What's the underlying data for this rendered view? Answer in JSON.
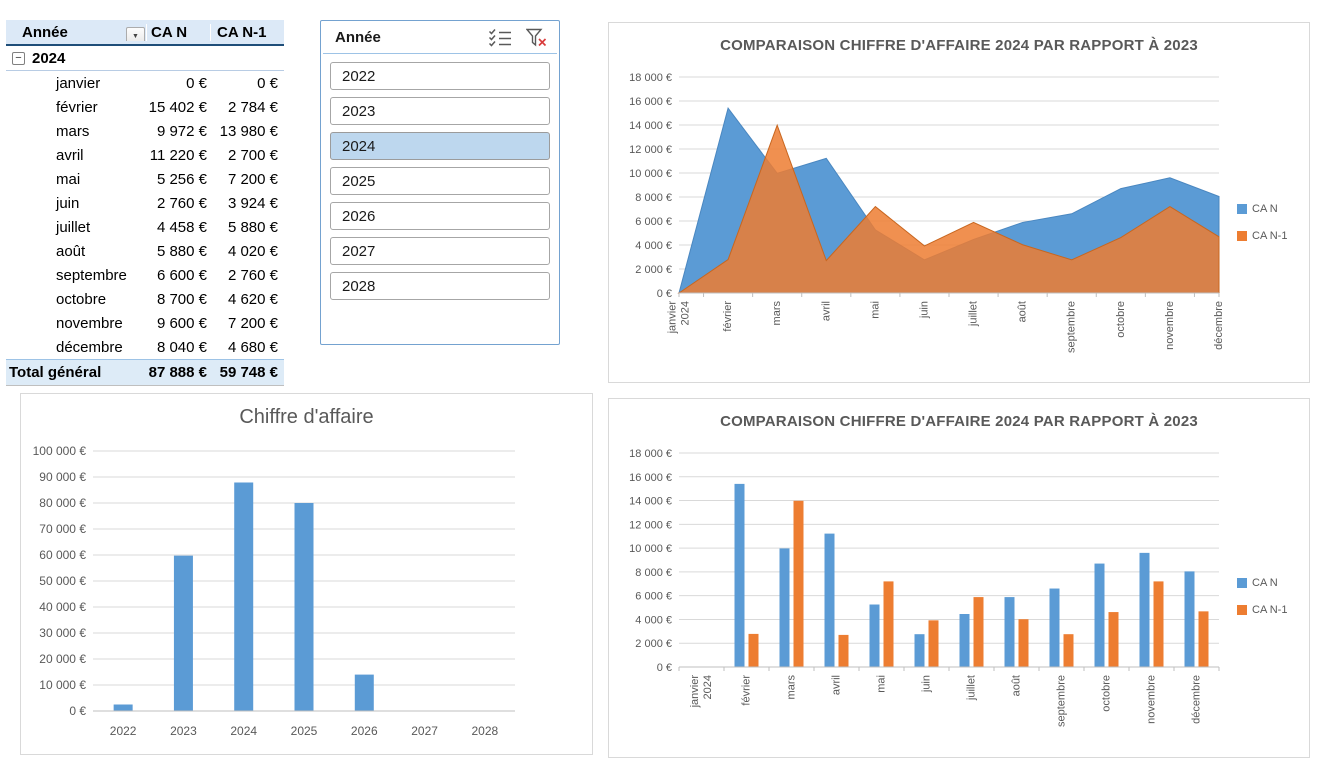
{
  "icons": {
    "collapse_glyph": "−",
    "dropdown_glyph": "▼"
  },
  "pivot_table": {
    "columns": [
      "Année",
      "CA N",
      "CA N-1"
    ],
    "group_label": "2024",
    "rows": [
      {
        "label": "janvier",
        "ca_n": "0 €",
        "ca_n1": "0 €"
      },
      {
        "label": "février",
        "ca_n": "15 402 €",
        "ca_n1": "2 784 €"
      },
      {
        "label": "mars",
        "ca_n": "9 972 €",
        "ca_n1": "13 980 €"
      },
      {
        "label": "avril",
        "ca_n": "11 220 €",
        "ca_n1": "2 700 €"
      },
      {
        "label": "mai",
        "ca_n": "5 256 €",
        "ca_n1": "7 200 €"
      },
      {
        "label": "juin",
        "ca_n": "2 760 €",
        "ca_n1": "3 924 €"
      },
      {
        "label": "juillet",
        "ca_n": "4 458 €",
        "ca_n1": "5 880 €"
      },
      {
        "label": "août",
        "ca_n": "5 880 €",
        "ca_n1": "4 020 €"
      },
      {
        "label": "septembre",
        "ca_n": "6 600 €",
        "ca_n1": "2 760 €"
      },
      {
        "label": "octobre",
        "ca_n": "8 700 €",
        "ca_n1": "4 620 €"
      },
      {
        "label": "novembre",
        "ca_n": "9 600 €",
        "ca_n1": "7 200 €"
      },
      {
        "label": "décembre",
        "ca_n": "8 040 €",
        "ca_n1": "4 680 €"
      }
    ],
    "total": {
      "label": "Total général",
      "ca_n": "87 888 €",
      "ca_n1": "59 748 €"
    }
  },
  "slicer": {
    "title": "Année",
    "items": [
      {
        "label": "2022",
        "selected": false
      },
      {
        "label": "2023",
        "selected": false
      },
      {
        "label": "2024",
        "selected": true
      },
      {
        "label": "2025",
        "selected": false
      },
      {
        "label": "2026",
        "selected": false
      },
      {
        "label": "2027",
        "selected": false
      },
      {
        "label": "2028",
        "selected": false
      }
    ]
  },
  "chart_data": [
    {
      "type": "area",
      "title": "COMPARAISON CHIFFRE D'AFFAIRE 2024 PAR RAPPORT À 2023",
      "categories": [
        "janvier\n2024",
        "février",
        "mars",
        "avril",
        "mai",
        "juin",
        "juillet",
        "août",
        "septembre",
        "octobre",
        "novembre",
        "décembre"
      ],
      "series": [
        {
          "name": "CA N",
          "color": "#5B9BD5",
          "values": [
            0,
            15402,
            9972,
            11220,
            5256,
            2760,
            4458,
            5880,
            6600,
            8700,
            9600,
            8040
          ]
        },
        {
          "name": "CA N-1",
          "color": "#ED7D31",
          "values": [
            0,
            2784,
            13980,
            2700,
            7200,
            3924,
            5880,
            4020,
            2760,
            4620,
            7200,
            4680
          ]
        }
      ],
      "ylim": [
        0,
        18000
      ],
      "ytick_step": 2000,
      "ytick_labels": [
        "0 €",
        "2 000 €",
        "4 000 €",
        "6 000 €",
        "8 000 €",
        "10 000 €",
        "12 000 €",
        "14 000 €",
        "16 000 €",
        "18 000 €"
      ],
      "legend_position": "right",
      "grid": true
    },
    {
      "type": "bar",
      "title": "Chiffre d'affaire",
      "categories": [
        "2022",
        "2023",
        "2024",
        "2025",
        "2026",
        "2027",
        "2028"
      ],
      "values": [
        2500,
        59748,
        87888,
        80000,
        14000,
        0,
        0
      ],
      "color": "#5B9BD5",
      "ylim": [
        0,
        100000
      ],
      "ytick_step": 10000,
      "ytick_labels": [
        "0 €",
        "10 000 €",
        "20 000 €",
        "30 000 €",
        "40 000 €",
        "50 000 €",
        "60 000 €",
        "70 000 €",
        "80 000 €",
        "90 000 €",
        "100 000 €"
      ],
      "legend_position": "none",
      "grid": true
    },
    {
      "type": "bar",
      "title": "COMPARAISON CHIFFRE D'AFFAIRE 2024 PAR RAPPORT À 2023",
      "categories": [
        "janvier\n2024",
        "février",
        "mars",
        "avril",
        "mai",
        "juin",
        "juillet",
        "août",
        "septembre",
        "octobre",
        "novembre",
        "décembre"
      ],
      "series": [
        {
          "name": "CA N",
          "color": "#5B9BD5",
          "values": [
            0,
            15402,
            9972,
            11220,
            5256,
            2760,
            4458,
            5880,
            6600,
            8700,
            9600,
            8040
          ]
        },
        {
          "name": "CA N-1",
          "color": "#ED7D31",
          "values": [
            0,
            2784,
            13980,
            2700,
            7200,
            3924,
            5880,
            4020,
            2760,
            4620,
            7200,
            4680
          ]
        }
      ],
      "ylim": [
        0,
        18000
      ],
      "ytick_step": 2000,
      "ytick_labels": [
        "0 €",
        "2 000 €",
        "4 000 €",
        "6 000 €",
        "8 000 €",
        "10 000 €",
        "12 000 €",
        "14 000 €",
        "16 000 €",
        "18 000 €"
      ],
      "legend_position": "right",
      "grid": true
    }
  ]
}
